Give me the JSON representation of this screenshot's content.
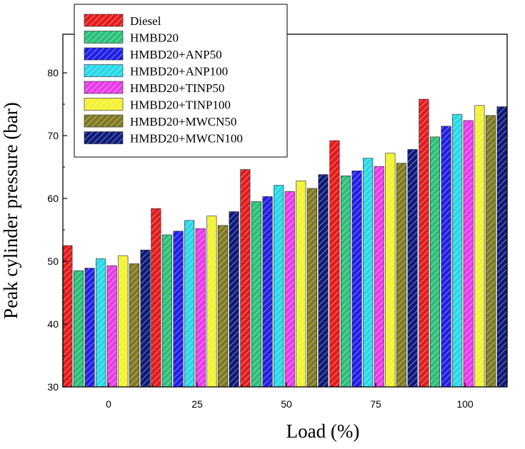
{
  "chart_data": {
    "type": "bar",
    "xlabel": "Load (%)",
    "ylabel": "Peak cylinder pressure (bar)",
    "categories": [
      "0",
      "25",
      "50",
      "75",
      "100"
    ],
    "ylim": [
      30,
      82
    ],
    "yticks": [
      30,
      40,
      50,
      60,
      70,
      80
    ],
    "grid": false,
    "legend_position": "top-left",
    "bar_pattern": "diagonal-hatch",
    "series": [
      {
        "name": "Diesel",
        "color": "#e41a1c",
        "values": [
          52.5,
          58.4,
          64.6,
          69.2,
          75.8
        ]
      },
      {
        "name": "HMBD20",
        "color": "#2bbf7a",
        "values": [
          48.5,
          54.2,
          59.5,
          63.6,
          69.8
        ]
      },
      {
        "name": "HMBD20+ANP50",
        "color": "#1f1fe6",
        "values": [
          48.9,
          54.8,
          60.3,
          64.4,
          71.5
        ]
      },
      {
        "name": "HMBD20+ANP100",
        "color": "#27d8e8",
        "values": [
          50.4,
          56.5,
          62.1,
          66.4,
          73.4
        ]
      },
      {
        "name": "HMBD20+TINP50",
        "color": "#e83ce8",
        "values": [
          49.3,
          55.2,
          61.1,
          65.1,
          72.4
        ]
      },
      {
        "name": "HMBD20+TINP100",
        "color": "#f2f230",
        "values": [
          50.9,
          57.2,
          62.8,
          67.2,
          74.8
        ]
      },
      {
        "name": "HMBD20+MWCN50",
        "color": "#7f7a22",
        "values": [
          49.6,
          55.7,
          61.6,
          65.6,
          73.2
        ]
      },
      {
        "name": "HMBD20+MWCN100",
        "color": "#0d1a7a",
        "values": [
          51.8,
          57.9,
          63.8,
          67.8,
          74.6
        ]
      }
    ]
  }
}
